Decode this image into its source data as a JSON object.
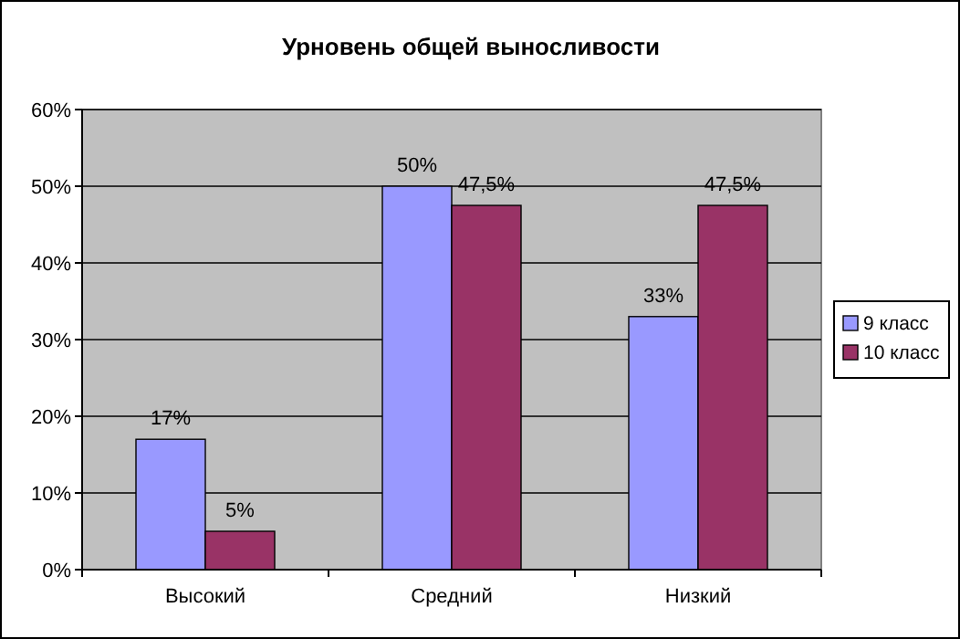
{
  "chart_data": {
    "type": "bar",
    "title": "Урновень общей выносливости",
    "categories": [
      "Высокий",
      "Средний",
      "Низкий"
    ],
    "series": [
      {
        "name": "9 класс",
        "color": "#9999ff",
        "values": [
          17,
          50,
          33
        ],
        "value_labels": [
          "17%",
          "50%",
          "33%"
        ]
      },
      {
        "name": "10 класс",
        "color": "#993366",
        "values": [
          5,
          47.5,
          47.5
        ],
        "value_labels": [
          "5%",
          "47,5%",
          "47,5%"
        ]
      }
    ],
    "ylim": [
      0,
      60
    ],
    "yticks": [
      {
        "value": 0,
        "label": "0%"
      },
      {
        "value": 10,
        "label": "10%"
      },
      {
        "value": 20,
        "label": "20%"
      },
      {
        "value": 30,
        "label": "30%"
      },
      {
        "value": 40,
        "label": "40%"
      },
      {
        "value": 50,
        "label": "50%"
      },
      {
        "value": 60,
        "label": "60%"
      }
    ],
    "grid": "y",
    "legend": "right"
  }
}
